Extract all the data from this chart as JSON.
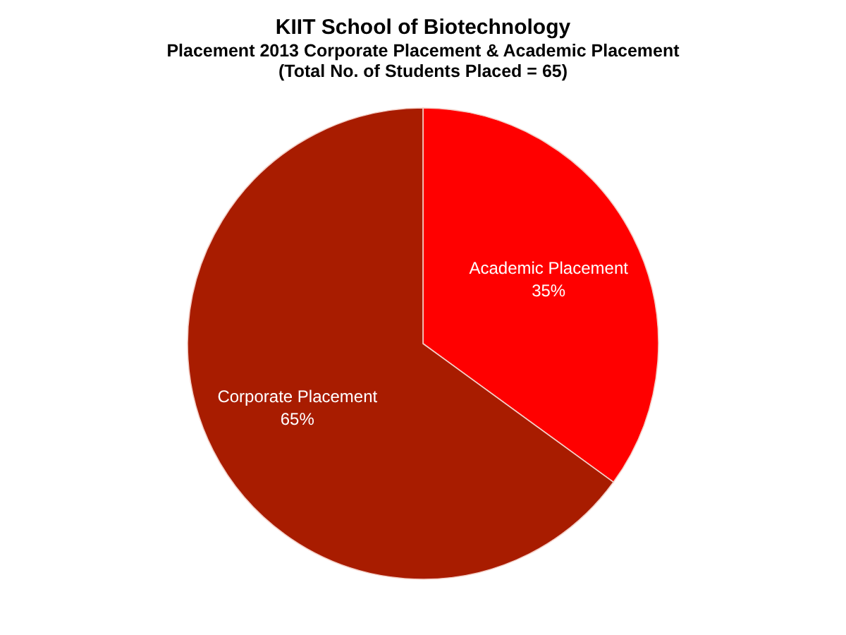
{
  "chart_data": {
    "type": "pie",
    "title": "KIIT School of Biotechnology",
    "subtitle": "Placement 2013 Corporate Placement  & Academic Placement\n(Total No. of Students Placed =  65)",
    "categories": [
      "Academic Placement",
      "Corporate Placement"
    ],
    "values": [
      35,
      65
    ],
    "colors": [
      "#ff0000",
      "#a81c00"
    ],
    "value_labels": [
      "35%",
      "65%"
    ],
    "legend": false
  }
}
